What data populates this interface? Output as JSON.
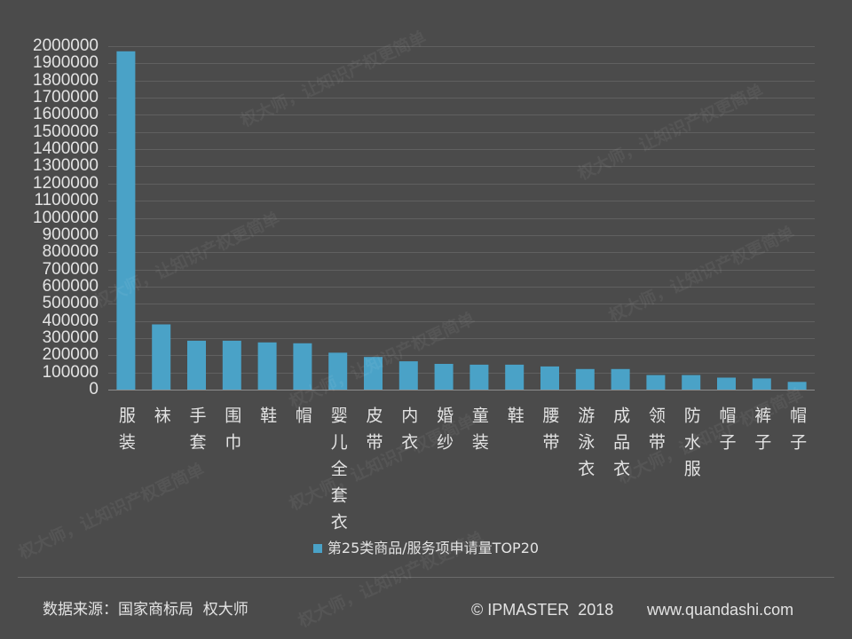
{
  "chart_data": {
    "type": "bar",
    "title": "",
    "xlabel": "",
    "ylabel": "",
    "categories": [
      "服装",
      "袜",
      "手套",
      "围巾",
      "鞋",
      "帽",
      "婴儿全套衣",
      "皮带",
      "内衣",
      "婚纱",
      "童装",
      "鞋",
      "腰带",
      "游泳衣",
      "成品衣",
      "领带",
      "防水服",
      "帽子",
      "裤子",
      "帽子"
    ],
    "series": [
      {
        "name": "第25类商品/服务项申请量TOP20",
        "values": [
          1970000,
          380000,
          285000,
          285000,
          275000,
          270000,
          215000,
          190000,
          165000,
          150000,
          145000,
          145000,
          135000,
          120000,
          120000,
          85000,
          85000,
          70000,
          65000,
          45000
        ]
      }
    ],
    "ylim": [
      0,
      2000000
    ],
    "yticks": [
      0,
      100000,
      200000,
      300000,
      400000,
      500000,
      600000,
      700000,
      800000,
      900000,
      1000000,
      1100000,
      1200000,
      1300000,
      1400000,
      1500000,
      1600000,
      1700000,
      1800000,
      1900000,
      2000000
    ],
    "grid": true,
    "legend": {
      "position": "bottom-center"
    },
    "colors": {
      "bar": "#4aa2c7",
      "grid": "#606060",
      "axis": "#8d8d8d",
      "background": "#4b4b4b"
    }
  },
  "footer": {
    "source": "数据来源：国家商标局  权大师",
    "copyright": "© IPMASTER  2018",
    "website": "www.quandashi.com"
  },
  "watermark": "权大师，让知识产权更简单"
}
